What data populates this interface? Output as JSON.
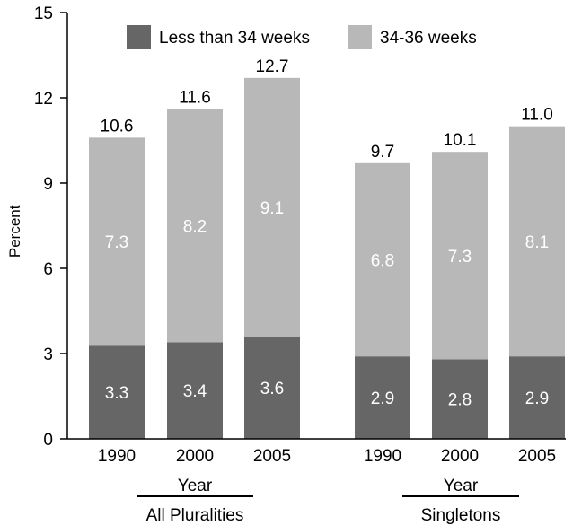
{
  "chart_data": {
    "type": "bar",
    "stacked": true,
    "ylabel": "Percent",
    "ylim": [
      0,
      15
    ],
    "yticks": [
      0,
      3,
      6,
      9,
      12,
      15
    ],
    "grid": false,
    "legend_position": "top",
    "series": [
      {
        "name": "Less than 34 weeks",
        "color": "#666666"
      },
      {
        "name": "34-36 weeks",
        "color": "#b8b8b8"
      }
    ],
    "groups": [
      {
        "label": "All Pluralities",
        "axis_label": "Year",
        "bars": [
          {
            "category": "1990",
            "values": [
              3.3,
              7.3
            ],
            "total": 10.6
          },
          {
            "category": "2000",
            "values": [
              3.4,
              8.2
            ],
            "total": 11.6
          },
          {
            "category": "2005",
            "values": [
              3.6,
              9.1
            ],
            "total": 12.7
          }
        ]
      },
      {
        "label": "Singletons",
        "axis_label": "Year",
        "bars": [
          {
            "category": "1990",
            "values": [
              2.9,
              6.8
            ],
            "total": 9.7
          },
          {
            "category": "2000",
            "values": [
              2.8,
              7.3
            ],
            "total": 10.1
          },
          {
            "category": "2005",
            "values": [
              2.9,
              8.1
            ],
            "total": 11.0
          }
        ]
      }
    ]
  }
}
